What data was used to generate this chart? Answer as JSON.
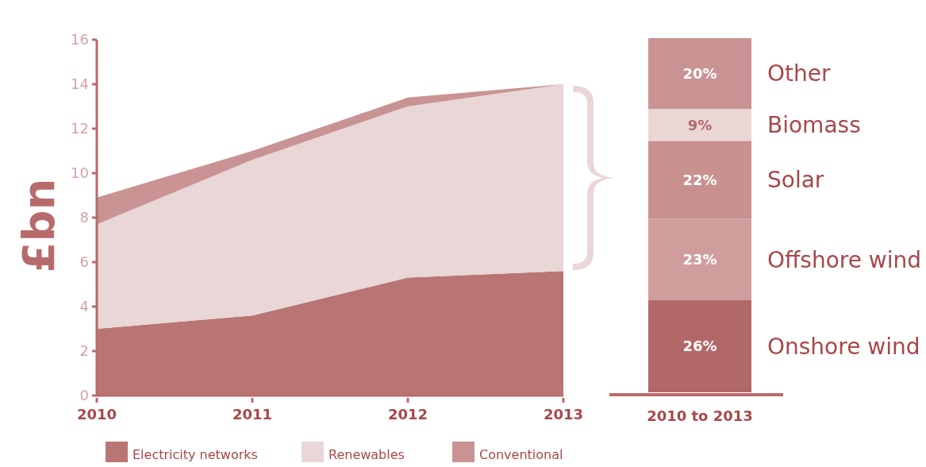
{
  "chart_data": [
    {
      "type": "area",
      "stacked": true,
      "ylabel": "£bn",
      "x": [
        2010,
        2011,
        2012,
        2013
      ],
      "xlim": [
        2010,
        2013
      ],
      "xticks": [
        2010,
        2011,
        2012,
        2013
      ],
      "ylim": [
        0,
        16
      ],
      "yticks": [
        0,
        2,
        4,
        6,
        8,
        10,
        12,
        14,
        16
      ],
      "legend": "bottom",
      "series": [
        {
          "name": "Electricity networks",
          "color": "#b97573",
          "values": [
            3.0,
            3.6,
            5.3,
            5.6
          ]
        },
        {
          "name": "Renewables",
          "color": "#e9d6d6",
          "values": [
            4.7,
            7.0,
            7.7,
            8.4
          ]
        },
        {
          "name": "Conventional",
          "color": "#c99393",
          "values": [
            1.2,
            0.4,
            0.4,
            0.0
          ]
        }
      ]
    },
    {
      "type": "bar",
      "stacked": true,
      "categories": [
        "2010 to 2013"
      ],
      "series": [
        {
          "name": "Onshore wind",
          "color": "#b36868",
          "values": [
            26
          ],
          "value_labels": [
            "26%"
          ]
        },
        {
          "name": "Offshore wind",
          "color": "#d09d9d",
          "values": [
            23
          ],
          "value_labels": [
            "23%"
          ]
        },
        {
          "name": "Solar",
          "color": "#c99090",
          "values": [
            22
          ],
          "value_labels": [
            "22%"
          ]
        },
        {
          "name": "Biomass",
          "color": "#ebd6d6",
          "values": [
            9
          ],
          "value_labels": [
            "9%"
          ]
        },
        {
          "name": "Other",
          "color": "#c99393",
          "values": [
            20
          ],
          "value_labels": [
            "20%"
          ]
        }
      ]
    }
  ]
}
